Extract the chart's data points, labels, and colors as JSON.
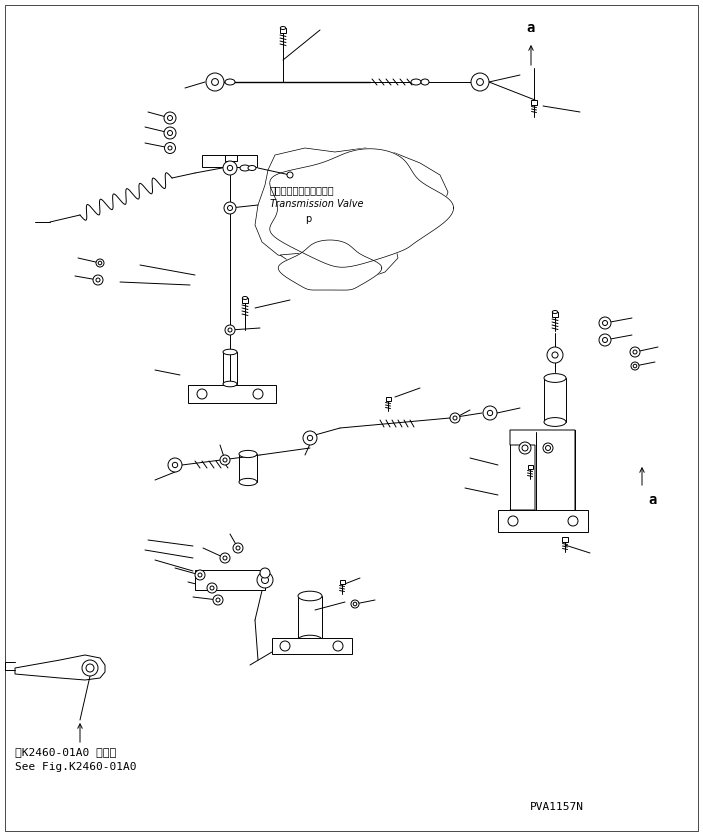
{
  "bg_color": "#ffffff",
  "line_color": "#000000",
  "fig_width": 7.03,
  "fig_height": 8.36,
  "dpi": 100,
  "transmission_label_jp": "トランスミションバルブ",
  "transmission_label_en": "Transmission Valve",
  "ref_label_jp": "第K2460-01A0 図参照",
  "ref_label_en": "See Fig.K2460-01A0",
  "part_number": "PVA1157N",
  "fs_tiny": 6,
  "fs_small": 7,
  "fs_med": 8,
  "fs_large": 10
}
